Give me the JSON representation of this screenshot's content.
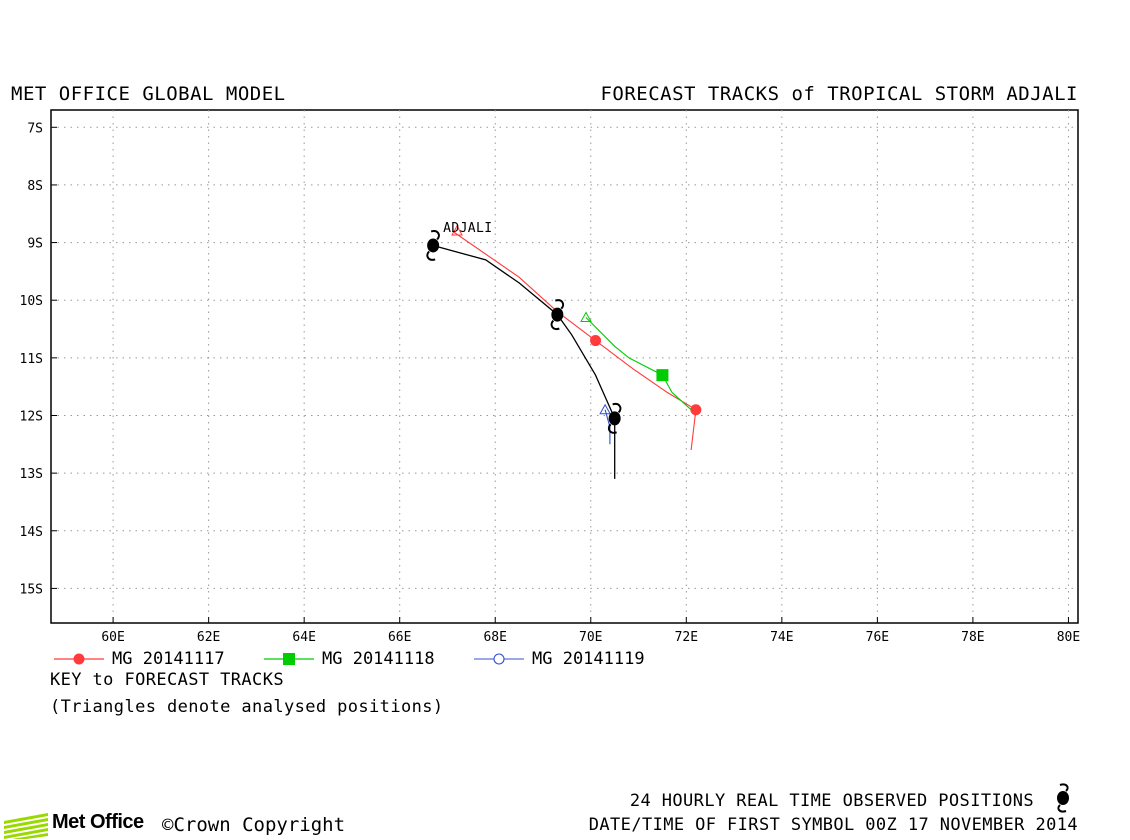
{
  "header": {
    "left_title": "MET OFFICE GLOBAL MODEL",
    "right_title": "FORECAST TRACKS of TROPICAL STORM ADJALI"
  },
  "map": {
    "lon_ticks": [
      "60E",
      "62E",
      "64E",
      "66E",
      "68E",
      "70E",
      "72E",
      "74E",
      "76E",
      "78E",
      "80E"
    ],
    "lat_ticks": [
      "7S",
      "8S",
      "9S",
      "10S",
      "11S",
      "12S",
      "13S",
      "14S",
      "15S"
    ],
    "lon_range": [
      58.7,
      80.2
    ],
    "lat_range": [
      6.7,
      15.6
    ],
    "storm_label": "ADJALI",
    "grid": true
  },
  "tracks": [
    {
      "name": "MG 20141117",
      "color": "#ff3b3b",
      "marker": "circle",
      "points": [
        [
          67.1,
          8.8
        ],
        [
          68.5,
          9.6
        ],
        [
          69.3,
          10.2
        ],
        [
          70.1,
          10.7
        ],
        [
          70.9,
          11.2
        ],
        [
          71.6,
          11.6
        ],
        [
          72.2,
          11.9
        ],
        [
          72.1,
          12.6
        ]
      ],
      "markers": [
        [
          70.1,
          10.7
        ],
        [
          72.2,
          11.9
        ]
      ],
      "analysed": [
        [
          67.2,
          8.8
        ]
      ]
    },
    {
      "name": "MG 20141118",
      "color": "#00cc00",
      "marker": "square",
      "points": [
        [
          69.9,
          10.3
        ],
        [
          70.5,
          10.8
        ],
        [
          70.8,
          11.0
        ],
        [
          71.5,
          11.3
        ],
        [
          71.7,
          11.6
        ],
        [
          72.1,
          11.9
        ]
      ],
      "markers": [
        [
          71.5,
          11.3
        ]
      ],
      "analysed": [
        [
          69.9,
          10.3
        ]
      ]
    },
    {
      "name": "MG 20141119",
      "color": "#3050d0",
      "marker": "open-circle",
      "points": [
        [
          70.3,
          11.9
        ],
        [
          70.4,
          12.2
        ],
        [
          70.4,
          12.5
        ]
      ],
      "markers": [],
      "analysed": [
        [
          70.3,
          11.9
        ]
      ]
    }
  ],
  "observed": {
    "color": "#000000",
    "points": [
      [
        66.7,
        9.05
      ],
      [
        67.8,
        9.3
      ],
      [
        68.5,
        9.7
      ],
      [
        69.3,
        10.25
      ],
      [
        69.6,
        10.6
      ],
      [
        70.1,
        11.3
      ],
      [
        70.5,
        12.05
      ],
      [
        70.5,
        13.1
      ]
    ],
    "symbols": [
      [
        66.7,
        9.05
      ],
      [
        69.3,
        10.25
      ],
      [
        70.5,
        12.05
      ]
    ]
  },
  "legend": {
    "items": [
      "MG 20141117",
      "MG 20141118",
      "MG 20141119"
    ],
    "key_title": "KEY to FORECAST TRACKS",
    "key_note": "(Triangles denote analysed positions)"
  },
  "footer": {
    "observed_note": "24 HOURLY REAL TIME OBSERVED POSITIONS",
    "first_symbol": "DATE/TIME OF FIRST SYMBOL 00Z 17 NOVEMBER 2014",
    "logo_text": "Met Office",
    "copyright": "©Crown Copyright"
  }
}
